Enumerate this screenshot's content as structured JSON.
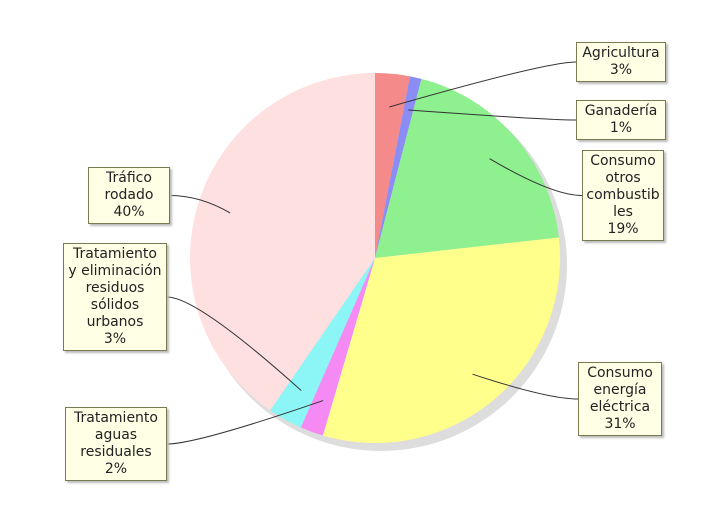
{
  "chart_data": {
    "type": "pie",
    "categories": [
      "Agricultura",
      "Ganadería",
      "Consumo otros combustibles",
      "Consumo energía eléctrica",
      "Tratamiento aguas residuales",
      "Tratamiento y eliminación residuos sólidos urbanos",
      "Tráfico rodado"
    ],
    "values": [
      3,
      1,
      19,
      31,
      2,
      3,
      40
    ],
    "value_labels": [
      "3%",
      "1%",
      "19%",
      "31%",
      "2%",
      "3%",
      "40%"
    ],
    "colors": [
      "#f58a8a",
      "#8c8cf5",
      "#8ef08e",
      "#ffff8c",
      "#f58af5",
      "#8cf5f5",
      "#ffe0e0"
    ]
  }
}
